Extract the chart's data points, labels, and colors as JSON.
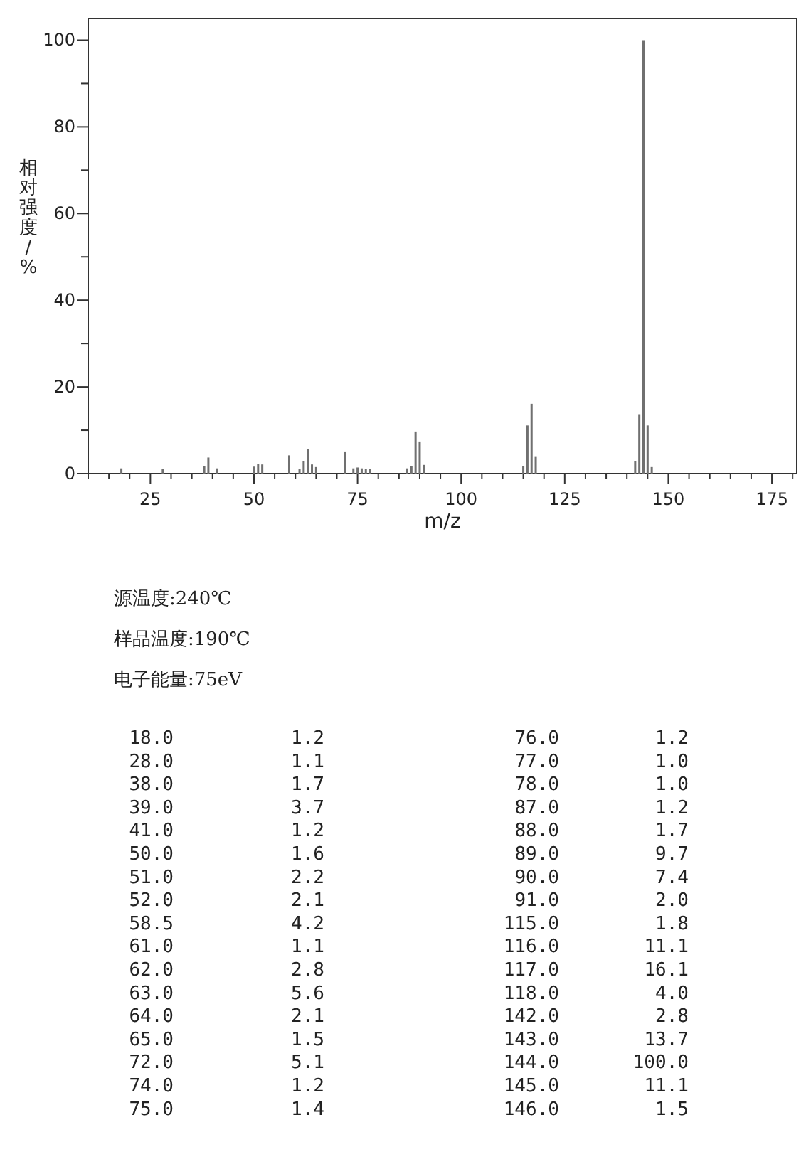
{
  "chart_data": [
    {
      "type": "bar",
      "xlabel": "m/z",
      "ylabel": "相对强度/%",
      "x": [
        18,
        28,
        38,
        39,
        41,
        50,
        51,
        52,
        58.5,
        61,
        62,
        63,
        64,
        65,
        72,
        74,
        75,
        76,
        77,
        78,
        87,
        88,
        89,
        90,
        91,
        115,
        116,
        117,
        118,
        142,
        143,
        144,
        145,
        146
      ],
      "values": [
        1.2,
        1.1,
        1.7,
        3.7,
        1.2,
        1.6,
        2.2,
        2.1,
        4.2,
        1.1,
        2.8,
        5.6,
        2.1,
        1.5,
        5.1,
        1.2,
        1.4,
        1.2,
        1.0,
        1.0,
        1.2,
        1.7,
        9.7,
        7.4,
        2.0,
        1.8,
        11.1,
        16.1,
        4.0,
        2.8,
        13.7,
        100,
        11.1,
        1.5
      ],
      "color": "#707070",
      "xlim": [
        10,
        181
      ],
      "xticks": [
        {
          "value": 10,
          "label": null
        },
        {
          "value": 15,
          "label": null
        },
        {
          "value": 20,
          "label": null
        },
        25,
        {
          "value": 30,
          "label": null
        },
        {
          "value": 35,
          "label": null
        },
        {
          "value": 40,
          "label": null
        },
        {
          "value": 45,
          "label": null
        },
        50,
        {
          "value": 55,
          "label": null
        },
        {
          "value": 60,
          "label": null
        },
        {
          "value": 65,
          "label": null
        },
        {
          "value": 70,
          "label": null
        },
        75,
        {
          "value": 80,
          "label": null
        },
        {
          "value": 85,
          "label": null
        },
        {
          "value": 90,
          "label": null
        },
        {
          "value": 95,
          "label": null
        },
        100,
        {
          "value": 105,
          "label": null
        },
        {
          "value": 110,
          "label": null
        },
        {
          "value": 115,
          "label": null
        },
        {
          "value": 120,
          "label": null
        },
        125,
        {
          "value": 130,
          "label": null
        },
        {
          "value": 135,
          "label": null
        },
        {
          "value": 140,
          "label": null
        },
        {
          "value": 145,
          "label": null
        },
        150,
        {
          "value": 155,
          "label": null
        },
        {
          "value": 160,
          "label": null
        },
        {
          "value": 165,
          "label": null
        },
        {
          "value": 170,
          "label": null
        },
        175,
        {
          "value": 180,
          "label": null
        }
      ],
      "ylim": [
        0,
        105
      ],
      "yticks": [
        0,
        {
          "value": 10,
          "label": null
        },
        20,
        {
          "value": 30,
          "label": null
        },
        40,
        {
          "value": 50,
          "label": null
        },
        60,
        {
          "value": 70,
          "label": null
        },
        80,
        {
          "value": 90,
          "label": null
        },
        100
      ],
      "annotations": [
        "源温度:240℃",
        "样品温度:190℃",
        "电子能量:75eV"
      ]
    },
    {
      "type": "other",
      "categories": [
        "18.0",
        "28.0",
        "38.0",
        "39.0",
        "41.0",
        "50.0",
        "51.0",
        "52.0",
        "58.5",
        "61.0",
        "62.0",
        "63.0",
        "64.0",
        "65.0",
        "72.0",
        "74.0",
        "75.0",
        "76.0",
        "77.0",
        "78.0",
        "87.0",
        "88.0",
        "89.0",
        "90.0",
        "91.0",
        "115.0",
        "116.0",
        "117.0",
        "118.0",
        "142.0",
        "143.0",
        "144.0",
        "145.0",
        "146.0"
      ],
      "value_labels": [
        "1.2",
        "1.1",
        "1.7",
        "3.7",
        "1.2",
        "1.6",
        "2.2",
        "2.1",
        "4.2",
        "1.1",
        "2.8",
        "5.6",
        "2.1",
        "1.5",
        "5.1",
        "1.2",
        "1.4",
        "1.2",
        "1.0",
        "1.0",
        "1.2",
        "1.7",
        "9.7",
        "7.4",
        "2.0",
        "1.8",
        "11.1",
        "16.1",
        "4.0",
        "2.8",
        "13.7",
        "100.0",
        "11.1",
        "1.5"
      ]
    }
  ]
}
